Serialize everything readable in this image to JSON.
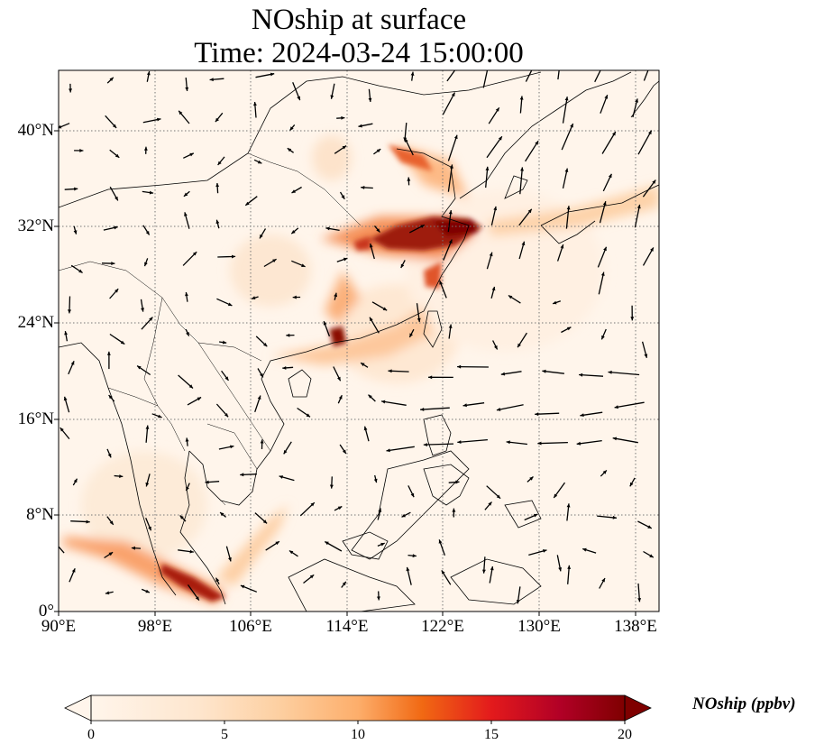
{
  "title_line1": "NOship at surface",
  "title_line2": "Time: 2024-03-24 15:00:00",
  "lat_labels": [
    "40°N",
    "32°N",
    "24°N",
    "16°N",
    "8°N",
    "0°"
  ],
  "lon_labels": [
    "90°E",
    "98°E",
    "106°E",
    "114°E",
    "122°E",
    "130°E",
    "138°E"
  ],
  "colorbar": {
    "label": "NOship (ppbv)",
    "ticks": [
      "0",
      "5",
      "10",
      "15",
      "20"
    ],
    "min": 0,
    "max": 20,
    "extend": "both",
    "colors": [
      "#fff5eb",
      "#fdd0a2",
      "#fdae6b",
      "#f16913",
      "#d94801",
      "#a50f15",
      "#7f0000"
    ]
  },
  "map": {
    "lon_range": [
      90,
      140
    ],
    "lat_range": [
      0,
      45
    ],
    "gridlines": "dotted gray at 8° spacing",
    "field": "NOship concentration shading",
    "overlay": "wind vectors (black arrows)"
  }
}
